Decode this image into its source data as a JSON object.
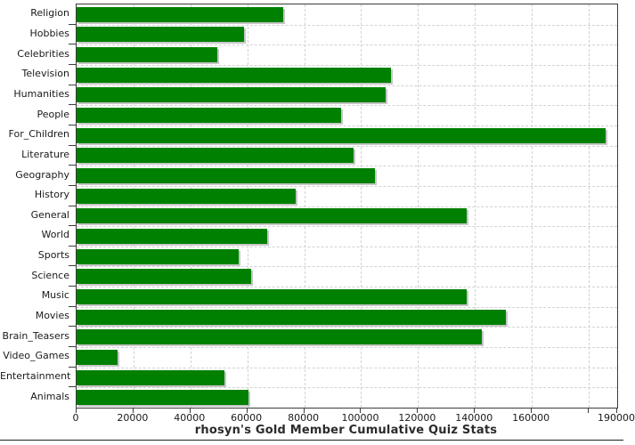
{
  "chart": {
    "colors": {
      "bar_fill": "#008000",
      "bar_shadow": "#c6c6c6",
      "grid": "#d2d2d2",
      "frame": "#3c3c3c",
      "text": "#1a1a1a",
      "background": "#ffffff"
    }
  },
  "chart_data": {
    "type": "bar",
    "orientation": "horizontal",
    "title": "rhosyn's Gold Member Cumulative Quiz Stats",
    "xlabel": "",
    "ylabel": "",
    "xlim": [
      0,
      190000
    ],
    "grid": "dashed, vertical at every x tick, horizontal at category boundaries",
    "legend": "none",
    "categories": [
      "Religion",
      "Hobbies",
      "Celebrities",
      "Television",
      "Humanities",
      "People",
      "For_Children",
      "Literature",
      "Geography",
      "History",
      "General",
      "World",
      "Sports",
      "Science",
      "Music",
      "Movies",
      "Brain_Teasers",
      "Video_Games",
      "Entertainment",
      "Animals"
    ],
    "values": [
      72500,
      59000,
      49500,
      110500,
      108500,
      93000,
      186000,
      97500,
      105000,
      77000,
      137000,
      67000,
      57000,
      61500,
      137000,
      151000,
      142500,
      14500,
      52000,
      60500
    ],
    "x_ticks": [
      {
        "value": 0,
        "label": "0"
      },
      {
        "value": 20000,
        "label": "20000"
      },
      {
        "value": 40000,
        "label": "40000"
      },
      {
        "value": 60000,
        "label": "60000"
      },
      {
        "value": 80000,
        "label": "80000"
      },
      {
        "value": 100000,
        "label": "100000"
      },
      {
        "value": 120000,
        "label": "120000"
      },
      {
        "value": 140000,
        "label": "140000"
      },
      {
        "value": 160000,
        "label": "160000"
      },
      {
        "value": 180000,
        "label": ""
      },
      {
        "value": 190000,
        "label": "190000"
      }
    ]
  }
}
